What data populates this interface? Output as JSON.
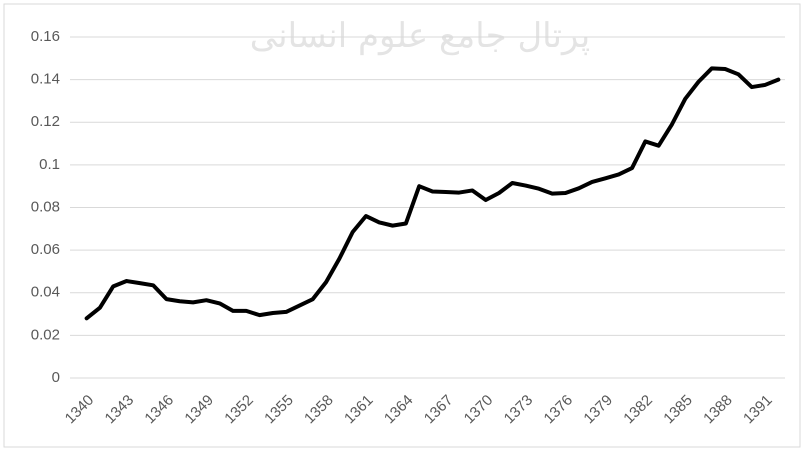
{
  "chart_data": {
    "type": "line",
    "watermark": "پرتال جامع علوم انسانی",
    "x": [
      1340,
      1341,
      1342,
      1343,
      1344,
      1345,
      1346,
      1347,
      1348,
      1349,
      1350,
      1351,
      1352,
      1353,
      1354,
      1355,
      1356,
      1357,
      1358,
      1359,
      1360,
      1361,
      1362,
      1363,
      1364,
      1365,
      1366,
      1367,
      1368,
      1369,
      1370,
      1371,
      1372,
      1373,
      1374,
      1375,
      1376,
      1377,
      1378,
      1379,
      1380,
      1381,
      1382,
      1383,
      1384,
      1385,
      1386,
      1387,
      1388,
      1389,
      1390,
      1391,
      1392
    ],
    "values": [
      0.028,
      0.033,
      0.043,
      0.0455,
      0.0445,
      0.0435,
      0.037,
      0.036,
      0.0355,
      0.0365,
      0.035,
      0.0315,
      0.0315,
      0.0295,
      0.0305,
      0.031,
      0.034,
      0.037,
      0.045,
      0.056,
      0.0685,
      0.076,
      0.073,
      0.0715,
      0.0725,
      0.09,
      0.0875,
      0.0873,
      0.087,
      0.088,
      0.0835,
      0.0868,
      0.0915,
      0.0903,
      0.0888,
      0.0865,
      0.0868,
      0.089,
      0.092,
      0.0937,
      0.0955,
      0.0985,
      0.111,
      0.109,
      0.119,
      0.131,
      0.139,
      0.1453,
      0.145,
      0.1425,
      0.1365,
      0.1375,
      0.14
    ],
    "color": "#000000",
    "xlim": [
      1339.5,
      1392.5
    ],
    "xticks": [
      1340,
      1343,
      1346,
      1349,
      1352,
      1355,
      1358,
      1361,
      1364,
      1367,
      1370,
      1373,
      1376,
      1379,
      1382,
      1385,
      1388,
      1391
    ],
    "ylim": [
      0,
      0.16
    ],
    "yticks": [
      0,
      0.02,
      0.04,
      0.06,
      0.08,
      0.1,
      0.12,
      0.14,
      0.16
    ],
    "grid": true
  }
}
